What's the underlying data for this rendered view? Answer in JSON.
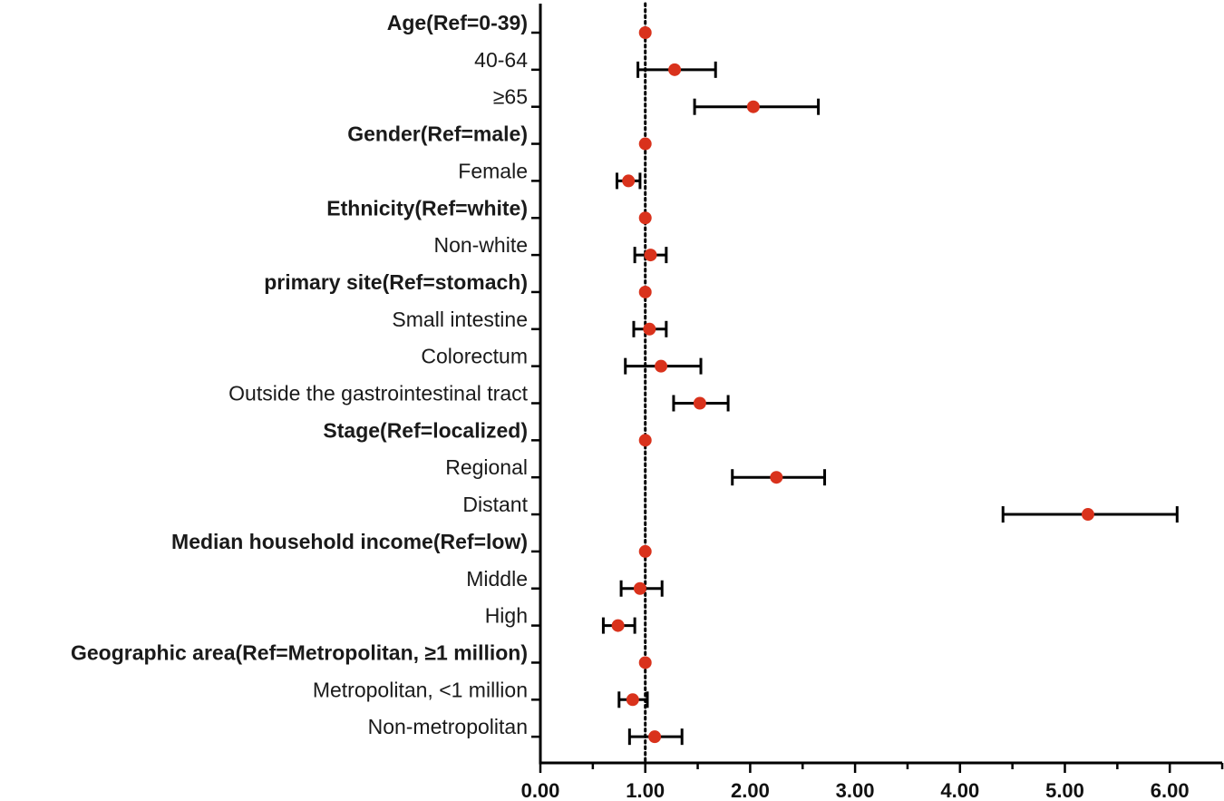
{
  "colors": {
    "point": "#d9321c",
    "axis": "#000000",
    "ci": "#000000",
    "reference_line": "#000000"
  },
  "chart_data": {
    "type": "forest",
    "title": "",
    "xlabel": "",
    "ylabel": "",
    "xlim": [
      0,
      6.5
    ],
    "reference_value": 1.0,
    "reference_line_style": "dotted",
    "x_ticks": [
      0,
      1,
      2,
      3,
      4,
      5,
      6
    ],
    "x_tick_labels": [
      "0.00",
      "1.00",
      "2.00",
      "3.00",
      "4.00",
      "5.00",
      "6.00"
    ],
    "rows": [
      {
        "label": "Age(Ref=0-39)",
        "bold": true,
        "estimate": 1.0,
        "lower": null,
        "upper": null
      },
      {
        "label": "40-64",
        "bold": false,
        "estimate": 1.28,
        "lower": 0.93,
        "upper": 1.67
      },
      {
        "label": "≥65",
        "bold": false,
        "estimate": 2.03,
        "lower": 1.47,
        "upper": 2.65
      },
      {
        "label": "Gender(Ref=male)",
        "bold": true,
        "estimate": 1.0,
        "lower": null,
        "upper": null
      },
      {
        "label": "Female",
        "bold": false,
        "estimate": 0.84,
        "lower": 0.73,
        "upper": 0.95
      },
      {
        "label": "Ethnicity(Ref=white)",
        "bold": true,
        "estimate": 1.0,
        "lower": null,
        "upper": null
      },
      {
        "label": "Non-white",
        "bold": false,
        "estimate": 1.05,
        "lower": 0.9,
        "upper": 1.2
      },
      {
        "label": "primary site(Ref=stomach)",
        "bold": true,
        "estimate": 1.0,
        "lower": null,
        "upper": null
      },
      {
        "label": "Small intestine",
        "bold": false,
        "estimate": 1.04,
        "lower": 0.89,
        "upper": 1.2
      },
      {
        "label": "Colorectum",
        "bold": false,
        "estimate": 1.15,
        "lower": 0.81,
        "upper": 1.53
      },
      {
        "label": "Outside the gastrointestinal tract",
        "bold": false,
        "estimate": 1.52,
        "lower": 1.27,
        "upper": 1.79
      },
      {
        "label": "Stage(Ref=localized)",
        "bold": true,
        "estimate": 1.0,
        "lower": null,
        "upper": null
      },
      {
        "label": "Regional",
        "bold": false,
        "estimate": 2.25,
        "lower": 1.83,
        "upper": 2.71
      },
      {
        "label": "Distant",
        "bold": false,
        "estimate": 5.22,
        "lower": 4.41,
        "upper": 6.07
      },
      {
        "label": "Median household income(Ref=low)",
        "bold": true,
        "estimate": 1.0,
        "lower": null,
        "upper": null
      },
      {
        "label": "Middle",
        "bold": false,
        "estimate": 0.95,
        "lower": 0.77,
        "upper": 1.16
      },
      {
        "label": "High",
        "bold": false,
        "estimate": 0.74,
        "lower": 0.6,
        "upper": 0.9
      },
      {
        "label": "Geographic area(Ref=Metropolitan, ≥1 million)",
        "bold": true,
        "estimate": 1.0,
        "lower": null,
        "upper": null
      },
      {
        "label": "Metropolitan,  <1 million",
        "bold": false,
        "estimate": 0.88,
        "lower": 0.75,
        "upper": 1.02
      },
      {
        "label": "Non-metropolitan",
        "bold": false,
        "estimate": 1.09,
        "lower": 0.85,
        "upper": 1.35
      }
    ]
  }
}
